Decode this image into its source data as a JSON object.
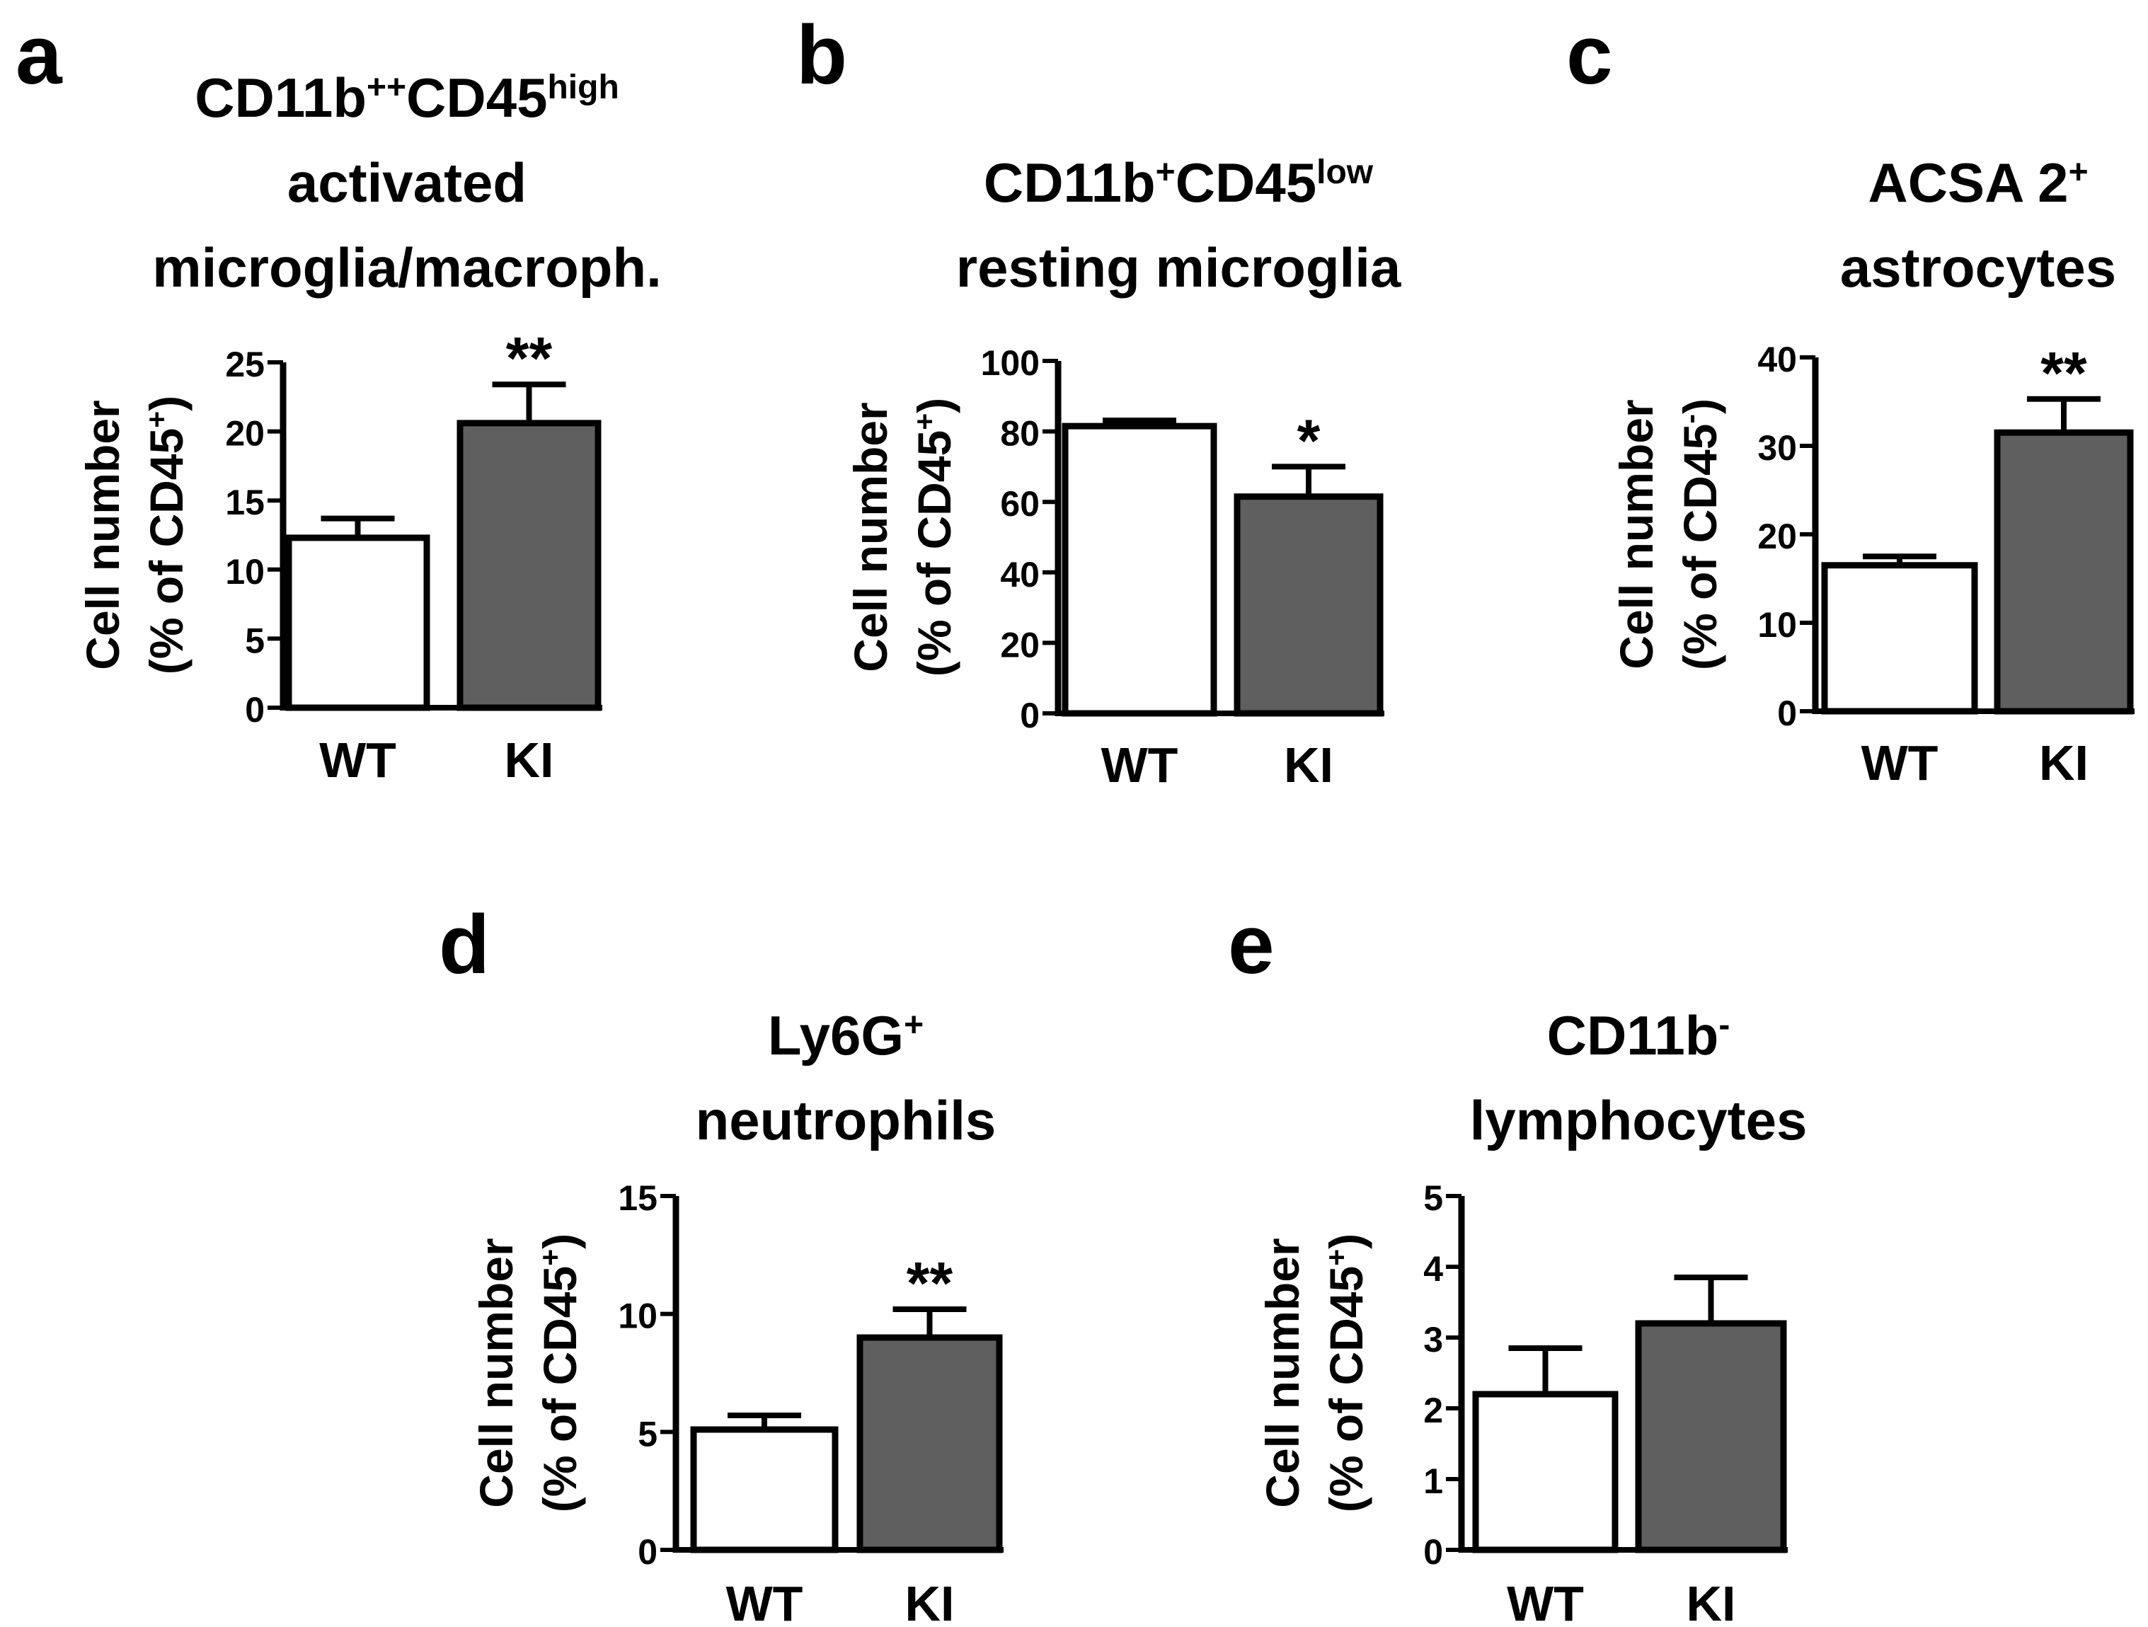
{
  "chart_data": [
    {
      "panel": "a",
      "type": "bar",
      "title_lines": [
        [
          {
            "t": "CD11b"
          },
          {
            "t": "++",
            "sup": true
          },
          {
            "t": "CD45"
          },
          {
            "t": "high",
            "sup": true
          }
        ],
        [
          {
            "t": "activated"
          }
        ],
        [
          {
            "t": "microglia/macroph."
          }
        ]
      ],
      "ylabel_line1": "Cell number",
      "ylabel_line2": [
        {
          "t": "(% of CD45"
        },
        {
          "t": "+",
          "sup": true
        },
        {
          "t": ")"
        }
      ],
      "ylim": [
        0,
        25
      ],
      "yticks": [
        0,
        5,
        10,
        15,
        20,
        25
      ],
      "categories": [
        "WT",
        "KI"
      ],
      "values": [
        12.3,
        20.6
      ],
      "errors": [
        1.4,
        2.8
      ],
      "significance": [
        "",
        "**"
      ],
      "fills": [
        "#ffffff",
        "#5f5f5f"
      ]
    },
    {
      "panel": "b",
      "type": "bar",
      "title_lines": [
        [
          {
            "t": "CD11b"
          },
          {
            "t": "+",
            "sup": true
          },
          {
            "t": "CD45"
          },
          {
            "t": "low",
            "sup": true
          }
        ],
        [
          {
            "t": "resting microglia"
          }
        ]
      ],
      "ylabel_line1": "Cell number",
      "ylabel_line2": [
        {
          "t": "(% of CD45"
        },
        {
          "t": "+",
          "sup": true
        },
        {
          "t": ")"
        }
      ],
      "ylim": [
        0,
        100
      ],
      "yticks": [
        0,
        20,
        40,
        60,
        80,
        100
      ],
      "categories": [
        "WT",
        "KI"
      ],
      "values": [
        81.5,
        61.5
      ],
      "errors": [
        1.6,
        8.5
      ],
      "significance": [
        "",
        "*"
      ],
      "fills": [
        "#ffffff",
        "#5f5f5f"
      ]
    },
    {
      "panel": "c",
      "type": "bar",
      "title_lines": [
        [
          {
            "t": "ACSA 2"
          },
          {
            "t": "+",
            "sup": true
          }
        ],
        [
          {
            "t": "astrocytes"
          }
        ]
      ],
      "ylabel_line1": "Cell number",
      "ylabel_line2": [
        {
          "t": "(% of CD45"
        },
        {
          "t": "-",
          "sup": true
        },
        {
          "t": ")"
        }
      ],
      "ylim": [
        0,
        40
      ],
      "yticks": [
        0,
        10,
        20,
        30,
        40
      ],
      "categories": [
        "WT",
        "KI"
      ],
      "values": [
        16.5,
        31.5
      ],
      "errors": [
        1.0,
        3.8
      ],
      "significance": [
        "",
        "**"
      ],
      "fills": [
        "#ffffff",
        "#5f5f5f"
      ]
    },
    {
      "panel": "d",
      "type": "bar",
      "title_lines": [
        [
          {
            "t": "Ly6G"
          },
          {
            "t": "+",
            "sup": true
          }
        ],
        [
          {
            "t": "neutrophils"
          }
        ]
      ],
      "ylabel_line1": "Cell number",
      "ylabel_line2": [
        {
          "t": "(% of CD45"
        },
        {
          "t": "+",
          "sup": true
        },
        {
          "t": ")"
        }
      ],
      "ylim": [
        0,
        15
      ],
      "yticks": [
        0,
        5,
        10,
        15
      ],
      "categories": [
        "WT",
        "KI"
      ],
      "values": [
        5.1,
        9.0
      ],
      "errors": [
        0.6,
        1.2
      ],
      "significance": [
        "",
        "**"
      ],
      "fills": [
        "#ffffff",
        "#5f5f5f"
      ]
    },
    {
      "panel": "e",
      "type": "bar",
      "title_lines": [
        [
          {
            "t": "CD11b"
          },
          {
            "t": "-",
            "sup": true
          }
        ],
        [
          {
            "t": "lymphocytes"
          }
        ]
      ],
      "ylabel_line1": "Cell number",
      "ylabel_line2": [
        {
          "t": "(% of CD45"
        },
        {
          "t": "+",
          "sup": true
        },
        {
          "t": ")"
        }
      ],
      "ylim": [
        0,
        5
      ],
      "yticks": [
        0,
        1,
        2,
        3,
        4,
        5
      ],
      "categories": [
        "WT",
        "KI"
      ],
      "values": [
        2.2,
        3.2
      ],
      "errors": [
        0.65,
        0.65
      ],
      "significance": [
        "",
        ""
      ],
      "fills": [
        "#ffffff",
        "#5f5f5f"
      ]
    }
  ]
}
